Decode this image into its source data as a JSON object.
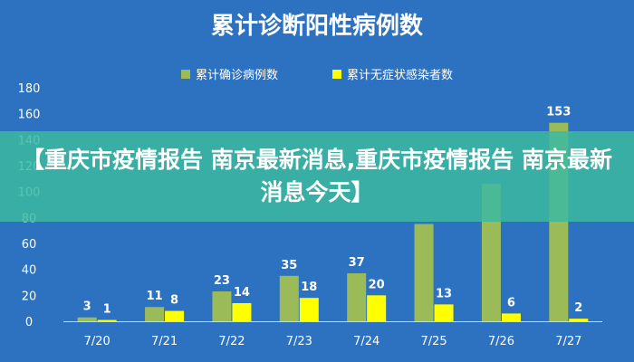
{
  "banner": {
    "text": "【重庆市疫情报告 南京最新消息,重庆市疫情报告 南京最新消息今天】"
  },
  "colors": {
    "background": "#2d72c0",
    "series_confirmed": "#9bbb59",
    "series_asymptomatic": "#ffff00",
    "banner": "#3cb9a0"
  },
  "chart_data": {
    "type": "bar",
    "title": "累计诊断阳性病例数",
    "categories": [
      "7/20",
      "7/21",
      "7/22",
      "7/23",
      "7/24",
      "7/25",
      "7/26",
      "7/27"
    ],
    "series": [
      {
        "name": "累计确诊病例数",
        "values": [
          3,
          11,
          23,
          35,
          37,
          75,
          106,
          153
        ]
      },
      {
        "name": "累计无症状感染者数",
        "values": [
          1,
          8,
          14,
          18,
          20,
          13,
          6,
          2
        ]
      }
    ],
    "data_labels": {
      "累计确诊病例数": [
        "3",
        "11",
        "23",
        "35",
        "37",
        "",
        "",
        "153"
      ],
      "累计无症状感染者数": [
        "1",
        "8",
        "14",
        "18",
        "20",
        "13",
        "6",
        "2"
      ]
    },
    "y_ticks": [
      "0",
      "20",
      "40",
      "60",
      "80",
      "100",
      "120",
      "140",
      "160",
      "180"
    ],
    "ylim": [
      0,
      180
    ],
    "xlabel": "",
    "ylabel": "",
    "legend_position": "top-center",
    "grid": false
  }
}
